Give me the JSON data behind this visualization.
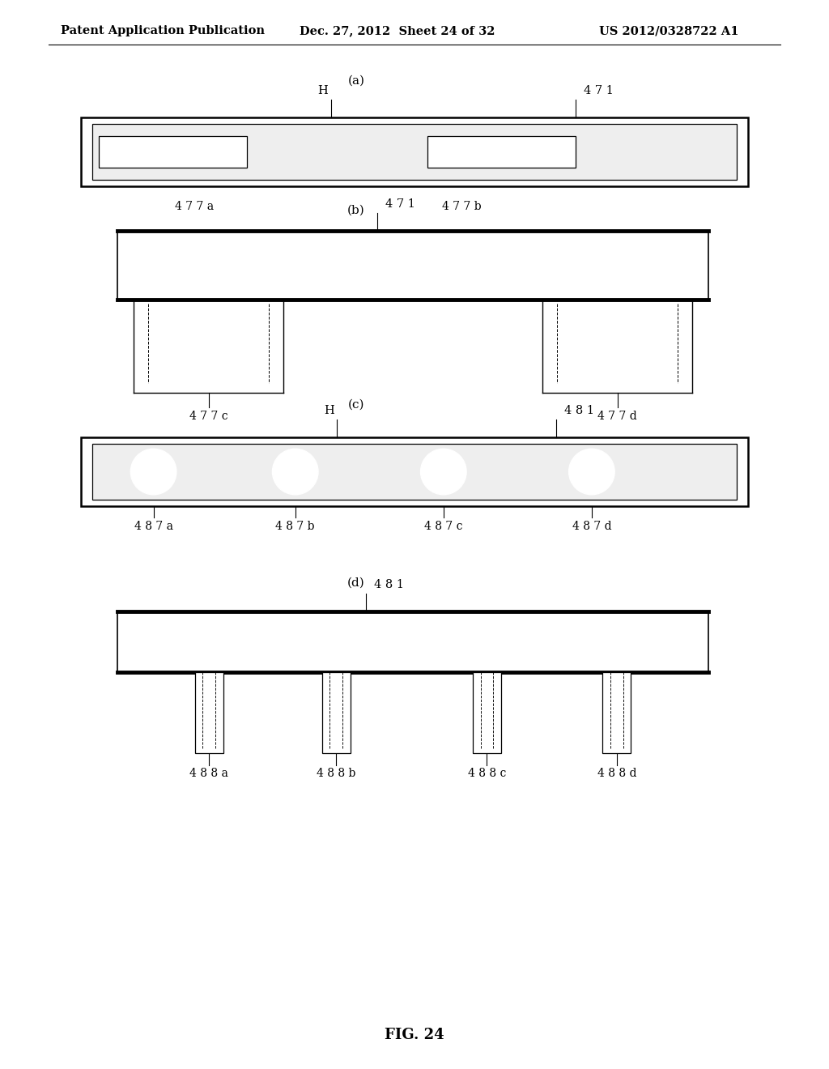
{
  "header_left": "Patent Application Publication",
  "header_mid": "Dec. 27, 2012  Sheet 24 of 32",
  "header_right": "US 2012/0328722 A1",
  "fig_label": "FIG. 24",
  "bg_color": "#ffffff",
  "line_color": "#000000"
}
